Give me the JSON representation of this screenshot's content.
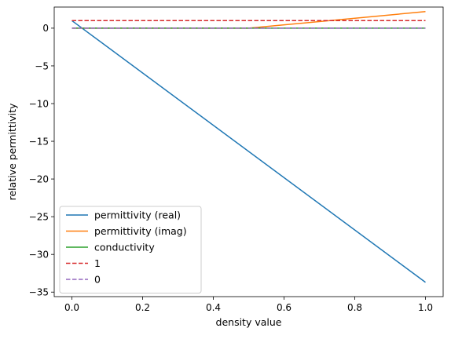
{
  "chart_data": {
    "type": "line",
    "title": "",
    "xlabel": "density value",
    "ylabel": "relative permittivity",
    "xlim": [
      -0.05,
      1.05
    ],
    "ylim": [
      -35.6,
      2.8
    ],
    "x_ticks": [
      0.0,
      0.2,
      0.4,
      0.6,
      0.8,
      1.0
    ],
    "x_tick_labels": [
      "0.0",
      "0.2",
      "0.4",
      "0.6",
      "0.8",
      "1.0"
    ],
    "y_ticks": [
      0,
      -5,
      -10,
      -15,
      -20,
      -25,
      -30,
      -35
    ],
    "y_tick_labels": [
      "0",
      "−5",
      "−10",
      "−15",
      "−20",
      "−25",
      "−30",
      "−35"
    ],
    "grid": false,
    "legend_position": "lower-left",
    "series": [
      {
        "name": "permittivity (real)",
        "color": "#1f77b4",
        "style": "solid",
        "x": [
          0.0,
          1.0
        ],
        "y": [
          1.0,
          -33.7
        ]
      },
      {
        "name": "permittivity (imag)",
        "color": "#ff7f0e",
        "style": "solid",
        "x": [
          0.0,
          0.5,
          1.0
        ],
        "y": [
          0.0,
          0.0,
          2.2
        ]
      },
      {
        "name": "conductivity",
        "color": "#2ca02c",
        "style": "solid",
        "x": [
          0.0,
          1.0
        ],
        "y": [
          0.0,
          0.0
        ]
      },
      {
        "name": "1",
        "color": "#d62728",
        "style": "dashed",
        "x": [
          0.0,
          1.0
        ],
        "y": [
          1.0,
          1.0
        ]
      },
      {
        "name": "0",
        "color": "#9467bd",
        "style": "dashed",
        "x": [
          0.0,
          1.0
        ],
        "y": [
          0.0,
          0.0
        ]
      }
    ]
  }
}
